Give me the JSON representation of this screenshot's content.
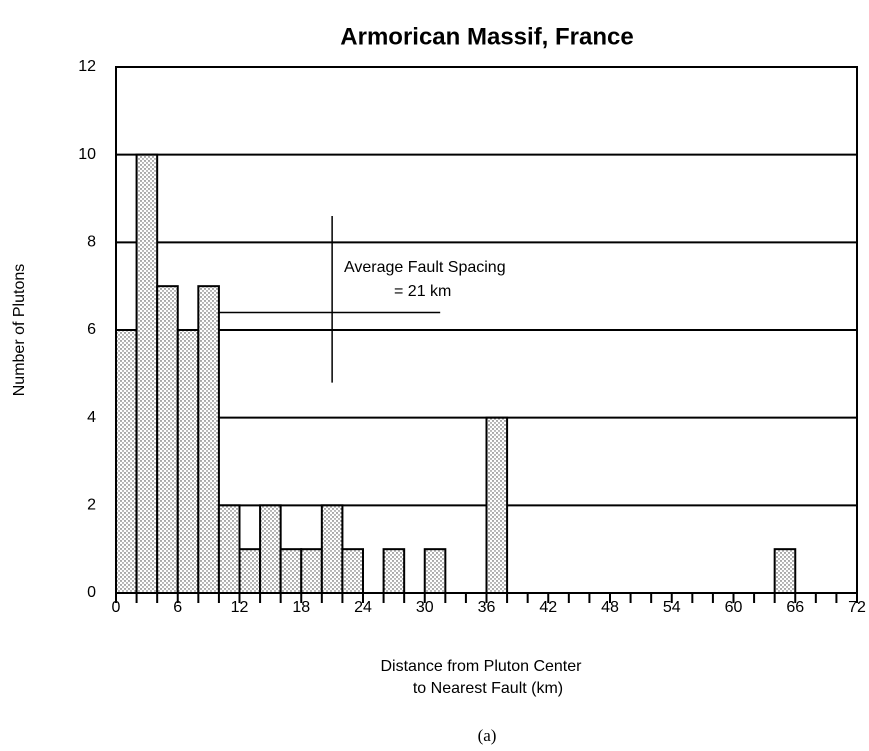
{
  "chart_data": {
    "type": "histogram",
    "title": "Armorican Massif, France",
    "x_label": [
      "Distance from Pluton Center",
      "to Nearest Fault (km)"
    ],
    "y_label": "Number of Plutons",
    "caption": "(a)",
    "bins": [
      0,
      2,
      4,
      6,
      8,
      10,
      12,
      14,
      16,
      18,
      20,
      22,
      24,
      26,
      28,
      30,
      32,
      34,
      36,
      38,
      40,
      42,
      44,
      46,
      48,
      50,
      52,
      54,
      56,
      58,
      60,
      62,
      64,
      66,
      68,
      70,
      72
    ],
    "values": [
      6,
      10,
      7,
      6,
      7,
      2,
      1,
      2,
      1,
      1,
      2,
      1,
      0,
      1,
      0,
      1,
      0,
      0,
      4,
      0,
      0,
      0,
      0,
      0,
      0,
      0,
      0,
      0,
      0,
      0,
      0,
      0,
      1,
      0,
      0,
      0
    ],
    "xlim": [
      0,
      72
    ],
    "xticks": [
      0,
      6,
      12,
      18,
      24,
      30,
      36,
      42,
      48,
      54,
      60,
      66,
      72
    ],
    "ylim": [
      0,
      12
    ],
    "yticks": [
      0,
      2,
      4,
      6,
      8,
      10,
      12
    ],
    "grid": true,
    "annotation": [
      "Average Fault Spacing",
      "= 21 km"
    ],
    "average": 21
  }
}
